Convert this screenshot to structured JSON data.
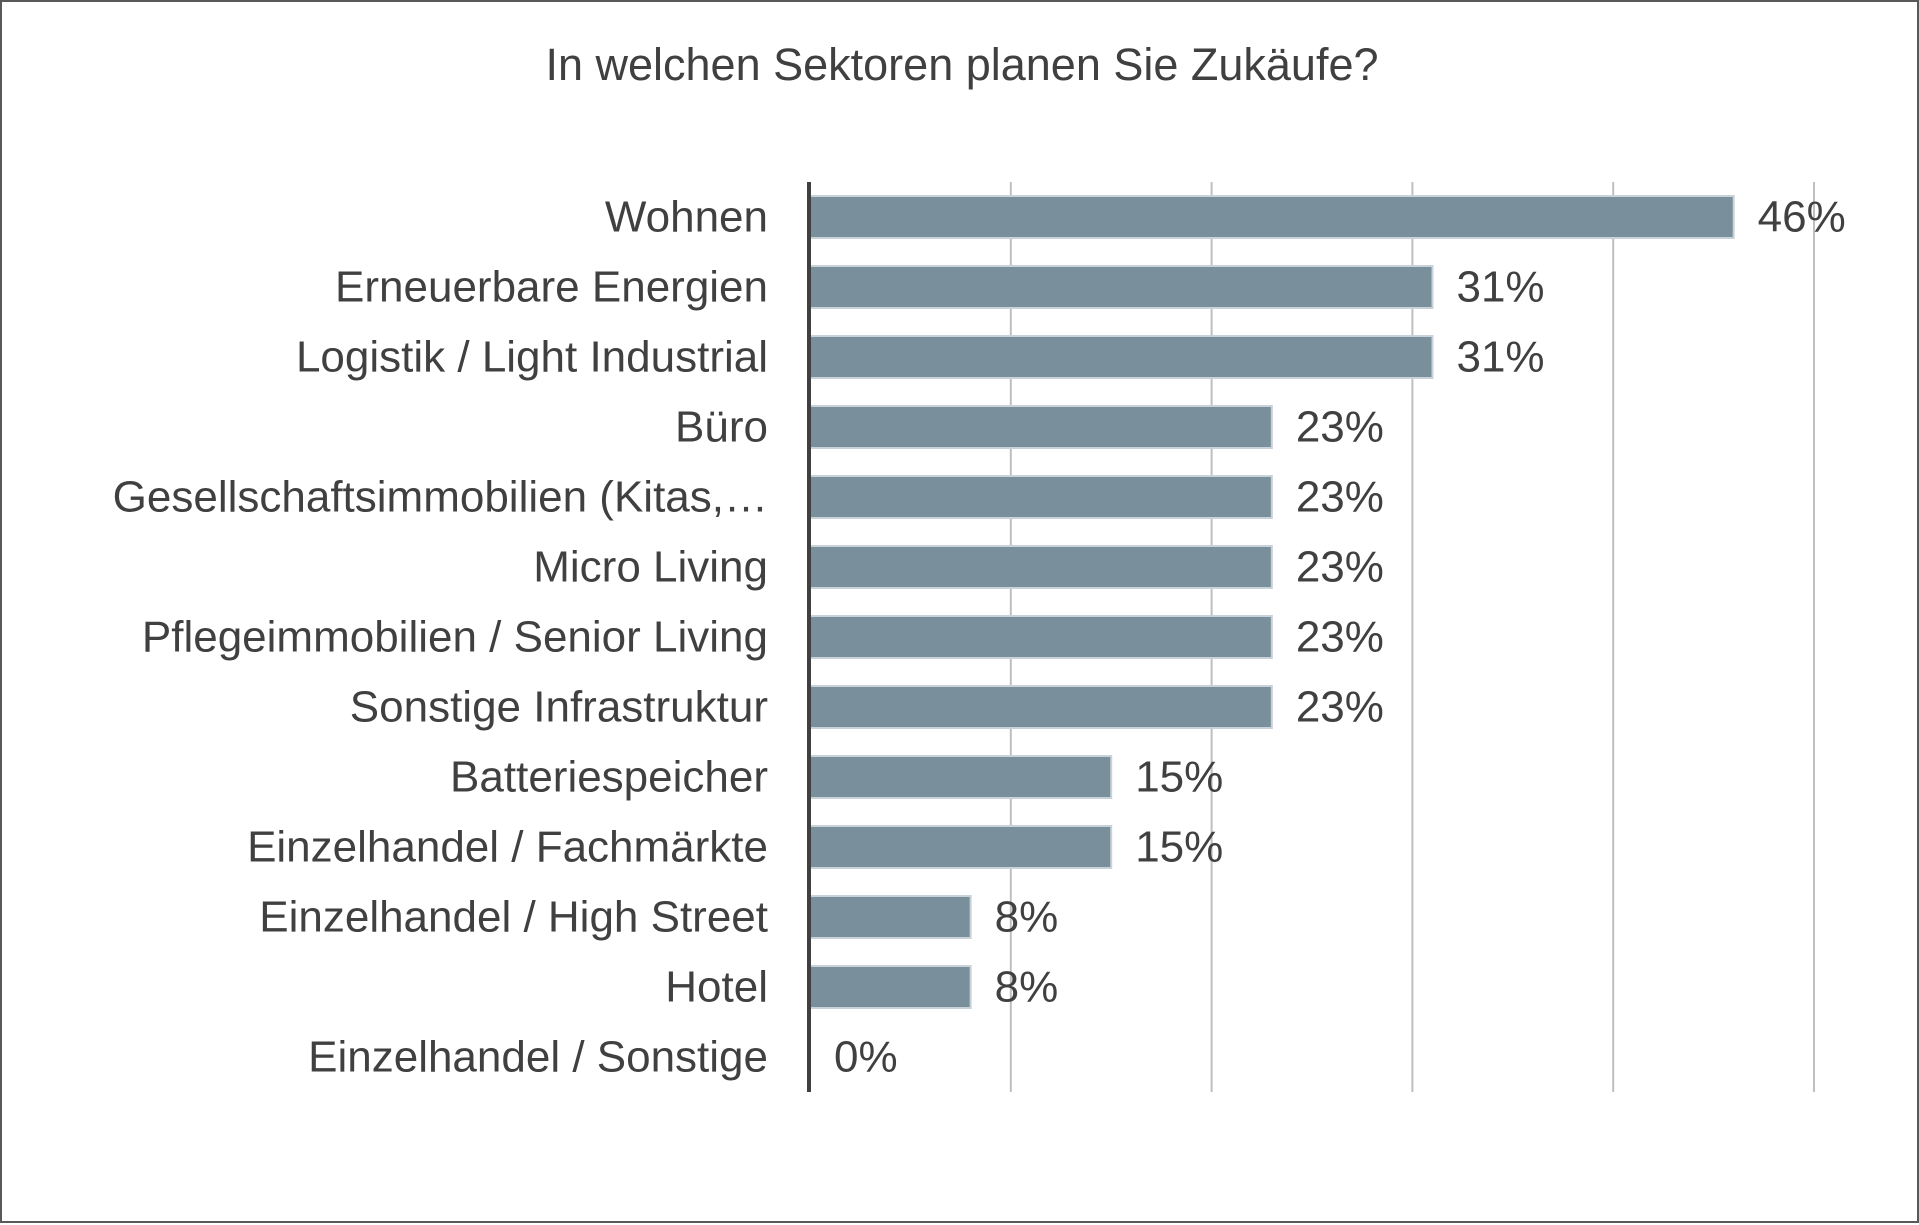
{
  "chart_data": {
    "type": "bar",
    "orientation": "horizontal",
    "title": "In welchen Sektoren planen Sie Zukäufe?",
    "categories": [
      "Wohnen",
      "Erneuerbare Energien",
      "Logistik / Light Industrial",
      "Büro",
      "Gesellschaftsimmobilien (Kitas,…",
      "Micro Living",
      "Pflegeimmobilien / Senior Living",
      "Sonstige Infrastruktur",
      "Batteriespeicher",
      "Einzelhandel / Fachmärkte",
      "Einzelhandel / High Street",
      "Hotel",
      "Einzelhandel / Sonstige"
    ],
    "values": [
      46,
      31,
      31,
      23,
      23,
      23,
      23,
      23,
      15,
      15,
      8,
      8,
      0
    ],
    "value_labels": [
      "46%",
      "31%",
      "31%",
      "23%",
      "23%",
      "23%",
      "23%",
      "23%",
      "15%",
      "15%",
      "8%",
      "8%",
      "0%"
    ],
    "xlim": [
      0,
      50
    ],
    "x_gridlines": [
      10,
      20,
      30,
      40,
      50
    ],
    "grid": true,
    "legend": "none",
    "bar_color": "#798f9b",
    "bar_edge_color": "#c9d2d8",
    "axis_color": "#404040",
    "grid_color": "#bfbfbf",
    "text_color": "#404040"
  }
}
